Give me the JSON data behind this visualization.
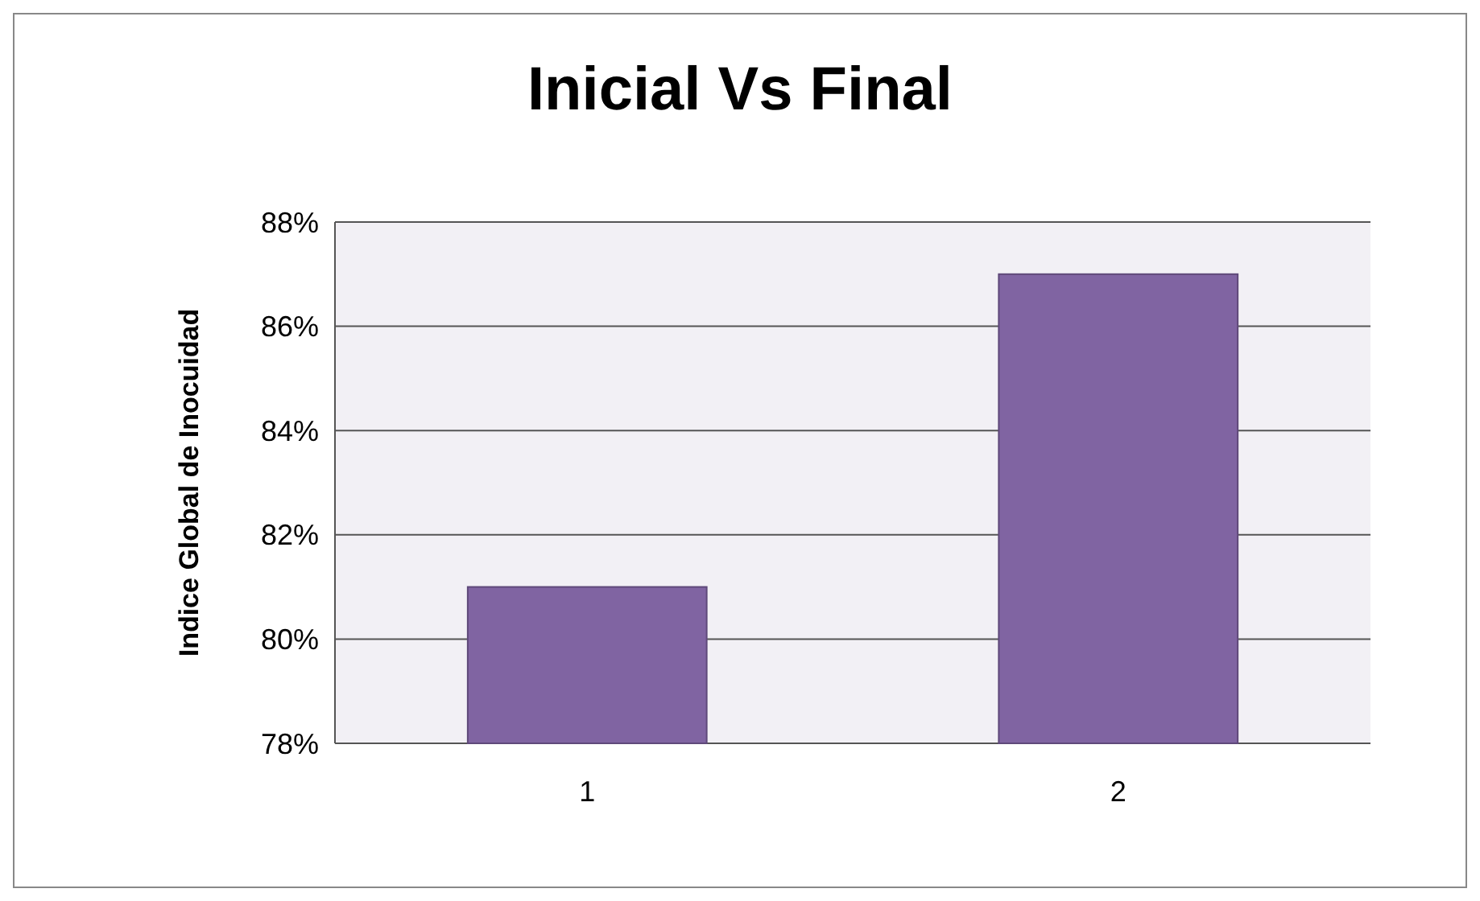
{
  "chart_data": {
    "type": "bar",
    "title": "Inicial Vs Final",
    "ylabel": "Indice Global de Inocuidad",
    "categories": [
      "1",
      "2"
    ],
    "values": [
      81,
      87
    ],
    "color": "#8064a2",
    "ylim": [
      78,
      88
    ],
    "yticks": [
      {
        "value": 78,
        "label": "78%"
      },
      {
        "value": 80,
        "label": "80%"
      },
      {
        "value": 82,
        "label": "82%"
      },
      {
        "value": 84,
        "label": "84%"
      },
      {
        "value": 86,
        "label": "86%"
      },
      {
        "value": 88,
        "label": "88%"
      }
    ],
    "grid": true
  }
}
